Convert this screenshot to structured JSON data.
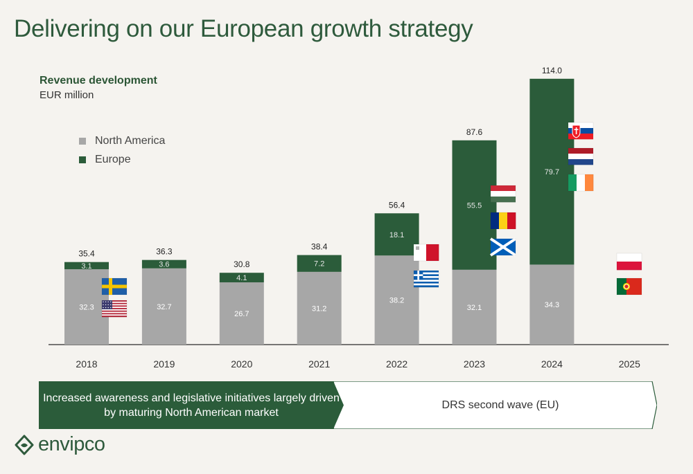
{
  "page": {
    "title": "Delivering on our European growth strategy",
    "brand": "envipco"
  },
  "chart_data": {
    "type": "bar",
    "stacked": true,
    "title": "Revenue development",
    "subtitle": "EUR million",
    "categories": [
      "2018",
      "2019",
      "2020",
      "2021",
      "2022",
      "2023",
      "2024",
      "2025"
    ],
    "series": [
      {
        "name": "North America",
        "color": "#a7a7a7",
        "values": [
          32.3,
          32.7,
          26.7,
          31.2,
          38.2,
          32.1,
          34.3,
          null
        ]
      },
      {
        "name": "Europe",
        "color": "#2b5c3a",
        "values": [
          3.1,
          3.6,
          4.1,
          7.2,
          18.1,
          55.5,
          79.7,
          null
        ]
      }
    ],
    "value_labels": {
      "North America": [
        "32.3",
        "32.7",
        "26.7",
        "31.2",
        "38.2",
        "32.1",
        "34.3",
        ""
      ],
      "Europe": [
        "3.1",
        "3.6",
        "4.1",
        "7.2",
        "18.1",
        "55.5",
        "79.7",
        ""
      ]
    },
    "totals": [
      "35.4",
      "36.3",
      "30.8",
      "38.4",
      "56.4",
      "87.6",
      "114.0",
      ""
    ],
    "legend_position": "left",
    "grid": false,
    "flags": [
      {
        "year": "2018",
        "icons": [
          "sweden-flag-icon",
          "usa-flag-icon"
        ]
      },
      {
        "year": "2022",
        "icons": [
          "malta-flag-icon",
          "greece-flag-icon"
        ]
      },
      {
        "year": "2023",
        "icons": [
          "hungary-flag-icon",
          "romania-flag-icon",
          "scotland-flag-icon"
        ]
      },
      {
        "year": "2024",
        "icons": [
          "slovakia-flag-icon",
          "netherlands-flag-icon",
          "ireland-flag-icon"
        ]
      },
      {
        "year": "2025",
        "icons": [
          "poland-flag-icon",
          "portugal-flag-icon"
        ]
      }
    ]
  },
  "phases": [
    {
      "label": "Increased awareness and legislative initiatives largely driven by maturing North American market",
      "color": "#2b5c3a"
    },
    {
      "label": "DRS second wave (EU)",
      "color": "#ffffff"
    }
  ]
}
